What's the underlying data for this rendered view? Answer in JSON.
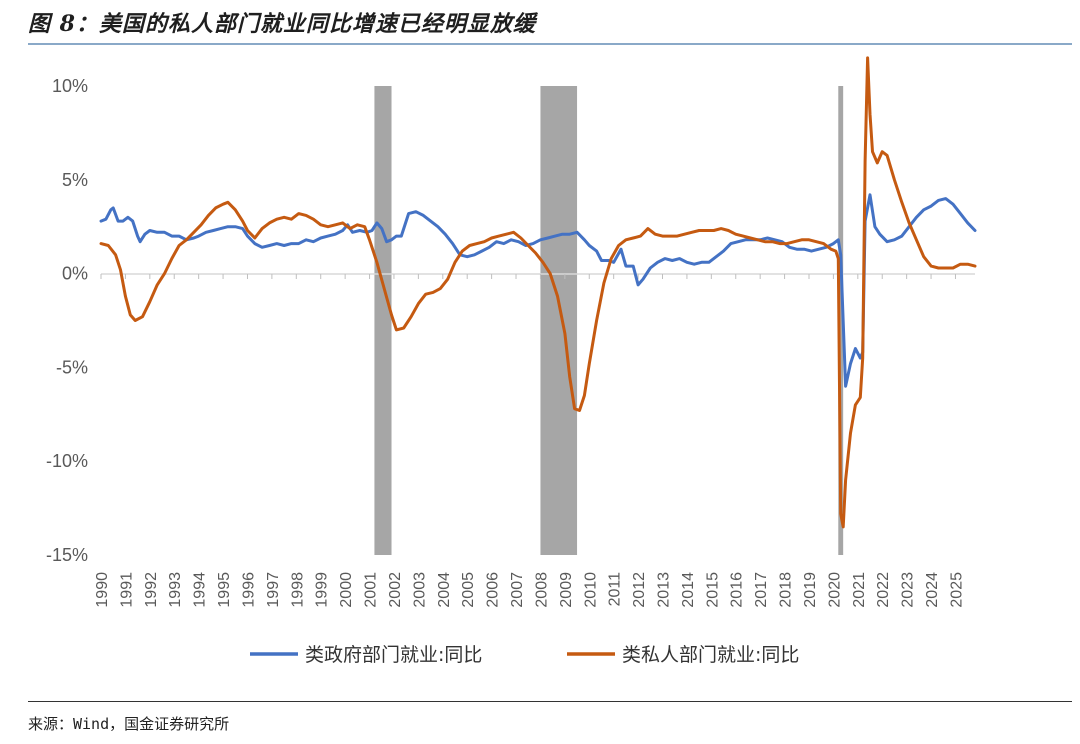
{
  "title": "图 8：美国的私人部门就业同比增速已经明显放缓",
  "source": "来源：Wind，国金证券研究所",
  "chart_data": {
    "type": "line",
    "title": "图 8：美国的私人部门就业同比增速已经明显放缓",
    "xlabel": "",
    "ylabel": "",
    "ylim": [
      -15,
      10
    ],
    "xlim": [
      1990,
      2025.8
    ],
    "y_ticks": [
      "10%",
      "5%",
      "0%",
      "-5%",
      "-10%",
      "-15%"
    ],
    "y_tick_values": [
      10,
      5,
      0,
      -5,
      -10,
      -15
    ],
    "x_ticks": [
      "1990",
      "1991",
      "1992",
      "1993",
      "1994",
      "1995",
      "1996",
      "1997",
      "1998",
      "1999",
      "2000",
      "2001",
      "2002",
      "2003",
      "2004",
      "2005",
      "2006",
      "2007",
      "2008",
      "2009",
      "2010",
      "2011",
      "2012",
      "2013",
      "2014",
      "2015",
      "2016",
      "2017",
      "2018",
      "2019",
      "2020",
      "2021",
      "2022",
      "2023",
      "2024",
      "2025"
    ],
    "grid": false,
    "legend_position": "bottom",
    "recessions": [
      [
        2001.2,
        2001.9
      ],
      [
        2008.0,
        2009.5
      ],
      [
        2020.2,
        2020.4
      ]
    ],
    "series": [
      {
        "name": "类政府部门就业:同比",
        "color": "#4472C4",
        "points": [
          [
            1990.0,
            2.8
          ],
          [
            1990.2,
            2.9
          ],
          [
            1990.4,
            3.4
          ],
          [
            1990.5,
            3.5
          ],
          [
            1990.7,
            2.8
          ],
          [
            1990.9,
            2.8
          ],
          [
            1991.1,
            3.0
          ],
          [
            1991.3,
            2.8
          ],
          [
            1991.5,
            2.0
          ],
          [
            1991.6,
            1.7
          ],
          [
            1991.8,
            2.1
          ],
          [
            1992.0,
            2.3
          ],
          [
            1992.3,
            2.2
          ],
          [
            1992.6,
            2.2
          ],
          [
            1992.9,
            2.0
          ],
          [
            1993.2,
            2.0
          ],
          [
            1993.5,
            1.8
          ],
          [
            1993.8,
            1.9
          ],
          [
            1994.0,
            2.0
          ],
          [
            1994.3,
            2.2
          ],
          [
            1994.6,
            2.3
          ],
          [
            1994.9,
            2.4
          ],
          [
            1995.2,
            2.5
          ],
          [
            1995.5,
            2.5
          ],
          [
            1995.8,
            2.4
          ],
          [
            1996.0,
            2.0
          ],
          [
            1996.3,
            1.6
          ],
          [
            1996.6,
            1.4
          ],
          [
            1996.9,
            1.5
          ],
          [
            1997.2,
            1.6
          ],
          [
            1997.5,
            1.5
          ],
          [
            1997.8,
            1.6
          ],
          [
            1998.1,
            1.6
          ],
          [
            1998.4,
            1.8
          ],
          [
            1998.7,
            1.7
          ],
          [
            1999.0,
            1.9
          ],
          [
            1999.3,
            2.0
          ],
          [
            1999.6,
            2.1
          ],
          [
            1999.9,
            2.3
          ],
          [
            2000.1,
            2.6
          ],
          [
            2000.3,
            2.2
          ],
          [
            2000.6,
            2.3
          ],
          [
            2000.9,
            2.2
          ],
          [
            2001.1,
            2.3
          ],
          [
            2001.3,
            2.7
          ],
          [
            2001.5,
            2.4
          ],
          [
            2001.7,
            1.7
          ],
          [
            2001.9,
            1.8
          ],
          [
            2002.1,
            2.0
          ],
          [
            2002.3,
            2.0
          ],
          [
            2002.6,
            3.2
          ],
          [
            2002.9,
            3.3
          ],
          [
            2003.2,
            3.1
          ],
          [
            2003.5,
            2.8
          ],
          [
            2003.8,
            2.5
          ],
          [
            2004.1,
            2.1
          ],
          [
            2004.4,
            1.6
          ],
          [
            2004.7,
            1.0
          ],
          [
            2005.0,
            0.9
          ],
          [
            2005.3,
            1.0
          ],
          [
            2005.6,
            1.2
          ],
          [
            2005.9,
            1.4
          ],
          [
            2006.2,
            1.7
          ],
          [
            2006.5,
            1.6
          ],
          [
            2006.8,
            1.8
          ],
          [
            2007.1,
            1.7
          ],
          [
            2007.4,
            1.5
          ],
          [
            2007.7,
            1.6
          ],
          [
            2008.0,
            1.8
          ],
          [
            2008.3,
            1.9
          ],
          [
            2008.6,
            2.0
          ],
          [
            2008.9,
            2.1
          ],
          [
            2009.2,
            2.1
          ],
          [
            2009.5,
            2.2
          ],
          [
            2009.8,
            1.8
          ],
          [
            2010.0,
            1.5
          ],
          [
            2010.3,
            1.2
          ],
          [
            2010.5,
            0.7
          ],
          [
            2010.8,
            0.7
          ],
          [
            2011.0,
            0.6
          ],
          [
            2011.3,
            1.3
          ],
          [
            2011.5,
            0.4
          ],
          [
            2011.8,
            0.4
          ],
          [
            2012.0,
            -0.6
          ],
          [
            2012.2,
            -0.3
          ],
          [
            2012.5,
            0.3
          ],
          [
            2012.8,
            0.6
          ],
          [
            2013.1,
            0.8
          ],
          [
            2013.4,
            0.7
          ],
          [
            2013.7,
            0.8
          ],
          [
            2014.0,
            0.6
          ],
          [
            2014.3,
            0.5
          ],
          [
            2014.6,
            0.6
          ],
          [
            2014.9,
            0.6
          ],
          [
            2015.2,
            0.9
          ],
          [
            2015.5,
            1.2
          ],
          [
            2015.8,
            1.6
          ],
          [
            2016.1,
            1.7
          ],
          [
            2016.4,
            1.8
          ],
          [
            2016.7,
            1.8
          ],
          [
            2017.0,
            1.8
          ],
          [
            2017.3,
            1.9
          ],
          [
            2017.6,
            1.8
          ],
          [
            2017.9,
            1.7
          ],
          [
            2018.2,
            1.4
          ],
          [
            2018.5,
            1.3
          ],
          [
            2018.8,
            1.3
          ],
          [
            2019.1,
            1.2
          ],
          [
            2019.4,
            1.3
          ],
          [
            2019.7,
            1.4
          ],
          [
            2020.0,
            1.6
          ],
          [
            2020.2,
            1.8
          ],
          [
            2020.3,
            1.0
          ],
          [
            2020.5,
            -6.0
          ],
          [
            2020.7,
            -4.8
          ],
          [
            2020.9,
            -4.0
          ],
          [
            2021.1,
            -4.5
          ],
          [
            2021.2,
            -4.2
          ],
          [
            2021.3,
            2.8
          ],
          [
            2021.5,
            4.2
          ],
          [
            2021.7,
            2.5
          ],
          [
            2021.9,
            2.1
          ],
          [
            2022.2,
            1.7
          ],
          [
            2022.5,
            1.8
          ],
          [
            2022.8,
            2.0
          ],
          [
            2023.1,
            2.5
          ],
          [
            2023.4,
            3.0
          ],
          [
            2023.7,
            3.4
          ],
          [
            2024.0,
            3.6
          ],
          [
            2024.3,
            3.9
          ],
          [
            2024.6,
            4.0
          ],
          [
            2024.9,
            3.7
          ],
          [
            2025.2,
            3.2
          ],
          [
            2025.5,
            2.7
          ],
          [
            2025.8,
            2.3
          ]
        ]
      },
      {
        "name": "类私人部门就业:同比",
        "color": "#C55A11",
        "points": [
          [
            1990.0,
            1.6
          ],
          [
            1990.3,
            1.5
          ],
          [
            1990.6,
            1.0
          ],
          [
            1990.8,
            0.2
          ],
          [
            1991.0,
            -1.2
          ],
          [
            1991.2,
            -2.2
          ],
          [
            1991.4,
            -2.5
          ],
          [
            1991.7,
            -2.3
          ],
          [
            1992.0,
            -1.5
          ],
          [
            1992.3,
            -0.6
          ],
          [
            1992.6,
            0.0
          ],
          [
            1992.9,
            0.8
          ],
          [
            1993.2,
            1.5
          ],
          [
            1993.5,
            1.8
          ],
          [
            1993.8,
            2.2
          ],
          [
            1994.1,
            2.6
          ],
          [
            1994.4,
            3.1
          ],
          [
            1994.7,
            3.5
          ],
          [
            1995.0,
            3.7
          ],
          [
            1995.2,
            3.8
          ],
          [
            1995.5,
            3.4
          ],
          [
            1995.8,
            2.8
          ],
          [
            1996.0,
            2.3
          ],
          [
            1996.3,
            1.9
          ],
          [
            1996.6,
            2.4
          ],
          [
            1996.9,
            2.7
          ],
          [
            1997.2,
            2.9
          ],
          [
            1997.5,
            3.0
          ],
          [
            1997.8,
            2.9
          ],
          [
            1998.1,
            3.2
          ],
          [
            1998.4,
            3.1
          ],
          [
            1998.7,
            2.9
          ],
          [
            1999.0,
            2.6
          ],
          [
            1999.3,
            2.5
          ],
          [
            1999.6,
            2.6
          ],
          [
            1999.9,
            2.7
          ],
          [
            2000.2,
            2.4
          ],
          [
            2000.5,
            2.6
          ],
          [
            2000.8,
            2.5
          ],
          [
            2001.0,
            1.8
          ],
          [
            2001.3,
            0.6
          ],
          [
            2001.6,
            -0.8
          ],
          [
            2001.9,
            -2.2
          ],
          [
            2002.1,
            -3.0
          ],
          [
            2002.4,
            -2.9
          ],
          [
            2002.7,
            -2.3
          ],
          [
            2003.0,
            -1.6
          ],
          [
            2003.3,
            -1.1
          ],
          [
            2003.6,
            -1.0
          ],
          [
            2003.9,
            -0.8
          ],
          [
            2004.2,
            -0.3
          ],
          [
            2004.5,
            0.6
          ],
          [
            2004.8,
            1.2
          ],
          [
            2005.1,
            1.5
          ],
          [
            2005.4,
            1.6
          ],
          [
            2005.7,
            1.7
          ],
          [
            2006.0,
            1.9
          ],
          [
            2006.3,
            2.0
          ],
          [
            2006.6,
            2.1
          ],
          [
            2006.9,
            2.2
          ],
          [
            2007.2,
            1.9
          ],
          [
            2007.5,
            1.5
          ],
          [
            2007.8,
            1.1
          ],
          [
            2008.1,
            0.6
          ],
          [
            2008.4,
            0.0
          ],
          [
            2008.7,
            -1.2
          ],
          [
            2009.0,
            -3.2
          ],
          [
            2009.2,
            -5.5
          ],
          [
            2009.4,
            -7.2
          ],
          [
            2009.6,
            -7.3
          ],
          [
            2009.8,
            -6.5
          ],
          [
            2010.0,
            -4.8
          ],
          [
            2010.3,
            -2.5
          ],
          [
            2010.6,
            -0.5
          ],
          [
            2010.9,
            0.8
          ],
          [
            2011.2,
            1.5
          ],
          [
            2011.5,
            1.8
          ],
          [
            2011.8,
            1.9
          ],
          [
            2012.1,
            2.0
          ],
          [
            2012.4,
            2.4
          ],
          [
            2012.7,
            2.1
          ],
          [
            2013.0,
            2.0
          ],
          [
            2013.3,
            2.0
          ],
          [
            2013.6,
            2.0
          ],
          [
            2013.9,
            2.1
          ],
          [
            2014.2,
            2.2
          ],
          [
            2014.5,
            2.3
          ],
          [
            2014.8,
            2.3
          ],
          [
            2015.1,
            2.3
          ],
          [
            2015.4,
            2.4
          ],
          [
            2015.7,
            2.3
          ],
          [
            2016.0,
            2.1
          ],
          [
            2016.3,
            2.0
          ],
          [
            2016.6,
            1.9
          ],
          [
            2016.9,
            1.8
          ],
          [
            2017.2,
            1.7
          ],
          [
            2017.5,
            1.7
          ],
          [
            2017.8,
            1.6
          ],
          [
            2018.1,
            1.6
          ],
          [
            2018.4,
            1.7
          ],
          [
            2018.7,
            1.8
          ],
          [
            2019.0,
            1.8
          ],
          [
            2019.3,
            1.7
          ],
          [
            2019.6,
            1.6
          ],
          [
            2019.9,
            1.3
          ],
          [
            2020.1,
            1.2
          ],
          [
            2020.2,
            0.8
          ],
          [
            2020.3,
            -12.8
          ],
          [
            2020.4,
            -13.5
          ],
          [
            2020.5,
            -11.0
          ],
          [
            2020.7,
            -8.5
          ],
          [
            2020.9,
            -7.0
          ],
          [
            2021.1,
            -6.6
          ],
          [
            2021.2,
            -4.5
          ],
          [
            2021.3,
            6.0
          ],
          [
            2021.4,
            11.5
          ],
          [
            2021.5,
            8.5
          ],
          [
            2021.6,
            6.5
          ],
          [
            2021.8,
            5.9
          ],
          [
            2022.0,
            6.5
          ],
          [
            2022.2,
            6.3
          ],
          [
            2022.5,
            5.0
          ],
          [
            2022.8,
            3.8
          ],
          [
            2023.1,
            2.7
          ],
          [
            2023.4,
            1.8
          ],
          [
            2023.7,
            0.9
          ],
          [
            2024.0,
            0.4
          ],
          [
            2024.3,
            0.3
          ],
          [
            2024.6,
            0.3
          ],
          [
            2024.9,
            0.3
          ],
          [
            2025.2,
            0.5
          ],
          [
            2025.5,
            0.5
          ],
          [
            2025.8,
            0.4
          ]
        ]
      }
    ]
  }
}
